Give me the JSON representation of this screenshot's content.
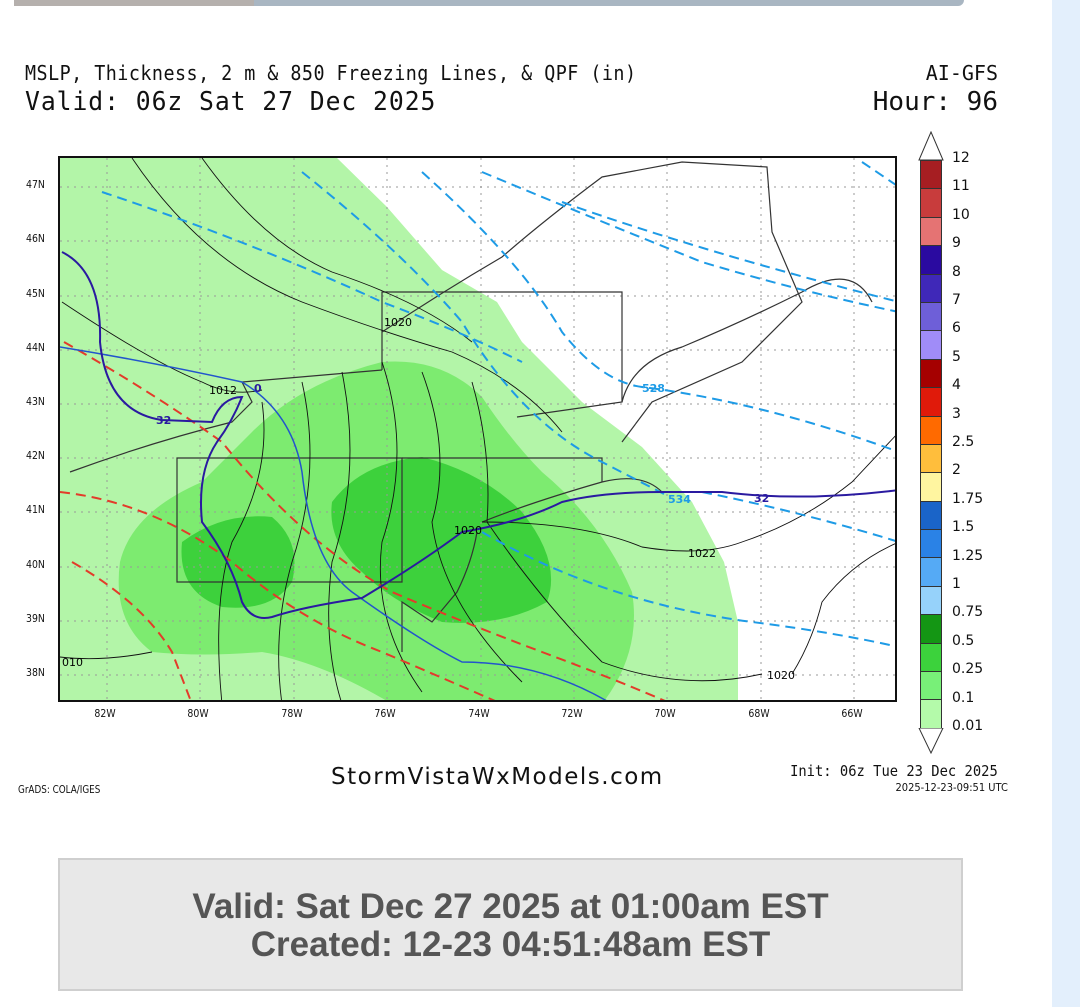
{
  "header": {
    "title": "MSLP, Thickness, 2 m & 850 Freezing Lines, & QPF (in)",
    "valid": "Valid: 06z Sat 27 Dec 2025",
    "model": "AI-GFS",
    "hour": "Hour: 96"
  },
  "map": {
    "lat_labels": [
      "47N",
      "46N",
      "45N",
      "44N",
      "43N",
      "42N",
      "41N",
      "40N",
      "39N",
      "38N"
    ],
    "lon_labels": [
      "82W",
      "80W",
      "78W",
      "76W",
      "74W",
      "72W",
      "70W",
      "68W",
      "66W"
    ],
    "contour_labels": {
      "isobar_1020_north": "1020",
      "isobar_1012": "1012",
      "isobar_1020_nyc": "1020",
      "isobar_1022": "1022",
      "isobar_1020_south": "1020",
      "isobar_1010": "010",
      "thickness_528": "528",
      "thickness_534": "534",
      "freezing_32_west": "32",
      "freezing_32_east": "32",
      "freezing_0": "0"
    },
    "colors": {
      "qpf_light": "#b3f5a8",
      "qpf_medium": "#7deb70",
      "qpf_heavy": "#3dd13c",
      "thickness_cold": "#1e9be6",
      "thickness_warm": "#e33b2a",
      "freezing_2m": "#2a1aa0",
      "freezing_850": "#2255cc",
      "isobar": "#111111"
    }
  },
  "colorbar": {
    "labels": [
      "12",
      "11",
      "10",
      "9",
      "8",
      "7",
      "6",
      "5",
      "4",
      "3",
      "2.5",
      "2",
      "1.75",
      "1.5",
      "1.25",
      "1",
      "0.75",
      "0.5",
      "0.25",
      "0.1",
      "0.01"
    ],
    "colors": [
      "#a61e22",
      "#c83c3c",
      "#e57373",
      "#2a0aa0",
      "#3f28b8",
      "#6e5fd8",
      "#a08cf8",
      "#a50000",
      "#e01a0a",
      "#ff6a00",
      "#ffbe3c",
      "#fff5a0",
      "#1a64c8",
      "#2a82e6",
      "#55aaf5",
      "#96d2fa",
      "#149614",
      "#3cd23c",
      "#78f078",
      "#b4faaa"
    ]
  },
  "footer": {
    "grads": "GrADS: COLA/IGES",
    "site": "StormVistaWxModels.com",
    "init": "Init: 06z Tue 23 Dec 2025",
    "stamp": "2025-12-23-09:51 UTC"
  },
  "infobox": {
    "valid": "Valid: Sat Dec 27 2025 at 01:00am EST",
    "created": "Created: 12-23 04:51:48am EST"
  }
}
